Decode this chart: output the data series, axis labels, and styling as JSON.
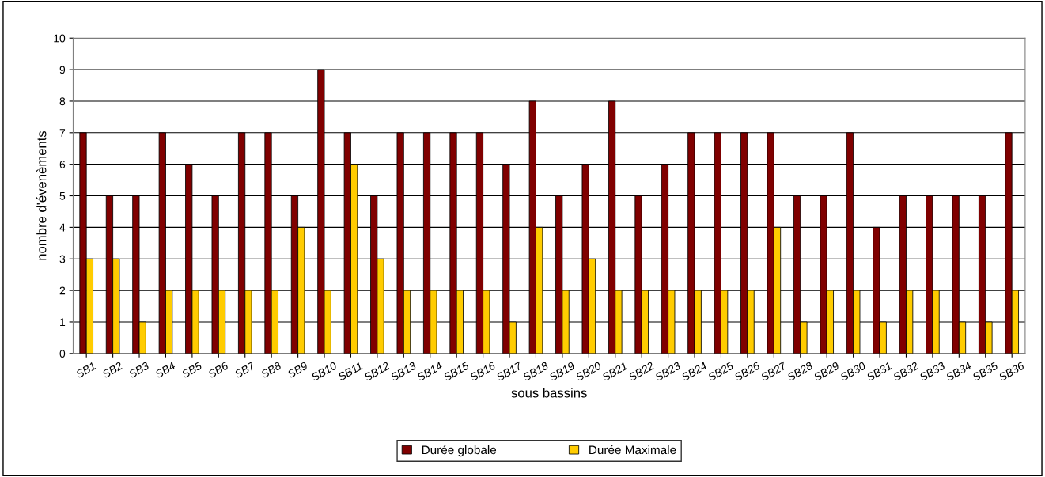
{
  "chart_data": {
    "type": "bar",
    "xlabel": "sous bassins",
    "ylabel": "nombre d'évenèments",
    "categories": [
      "SB1",
      "SB2",
      "SB3",
      "SB4",
      "SB5",
      "SB6",
      "SB7",
      "SB8",
      "SB9",
      "SB10",
      "SB11",
      "SB12",
      "SB13",
      "SB14",
      "SB15",
      "SB16",
      "SB17",
      "SB18",
      "SB19",
      "SB20",
      "SB21",
      "SB22",
      "SB23",
      "SB24",
      "SB25",
      "SB26",
      "SB27",
      "SB28",
      "SB29",
      "SB30",
      "SB31",
      "SB32",
      "SB33",
      "SB34",
      "SB35",
      "SB36"
    ],
    "series": [
      {
        "name": "Durée globale",
        "color": "#800000",
        "values": [
          7,
          5,
          5,
          7,
          6,
          5,
          7,
          7,
          5,
          9,
          7,
          5,
          7,
          7,
          7,
          7,
          6,
          8,
          5,
          6,
          8,
          5,
          6,
          7,
          7,
          7,
          7,
          5,
          5,
          7,
          4,
          5,
          5,
          5,
          5,
          7
        ]
      },
      {
        "name": "Durée Maximale",
        "color": "#ffcc00",
        "values": [
          3,
          3,
          1,
          2,
          2,
          2,
          2,
          2,
          4,
          2,
          6,
          3,
          2,
          2,
          2,
          2,
          1,
          4,
          2,
          3,
          2,
          2,
          2,
          2,
          2,
          2,
          4,
          1,
          2,
          2,
          1,
          2,
          2,
          1,
          1,
          2
        ]
      }
    ],
    "ylim": [
      0,
      10
    ],
    "yticks": [
      0,
      1,
      2,
      3,
      4,
      5,
      6,
      7,
      8,
      9,
      10
    ],
    "grid": "y",
    "legend": "bottom"
  }
}
